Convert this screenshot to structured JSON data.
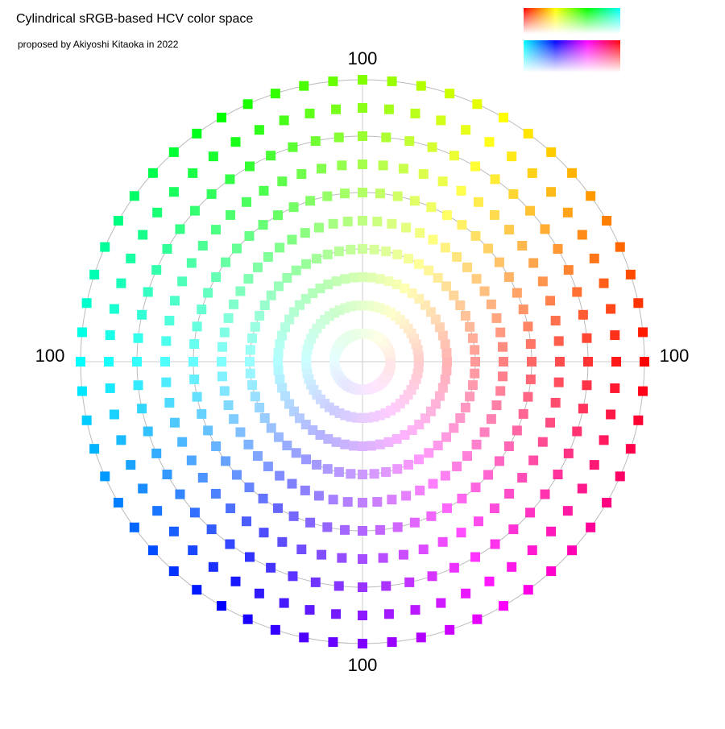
{
  "chart_data": {
    "type": "polar-scatter",
    "title": "Cylindrical sRGB-based HCV color space",
    "subtitle": "proposed by Akiyoshi Kitaoka in 2022",
    "rlim": [
      0,
      100
    ],
    "rgrid": [
      20,
      40,
      60,
      80,
      100
    ],
    "rticks": [
      100
    ],
    "rings": [
      10,
      20,
      30,
      40,
      50,
      60,
      70,
      80,
      90,
      100
    ],
    "points_per_ring": 60
  }
}
